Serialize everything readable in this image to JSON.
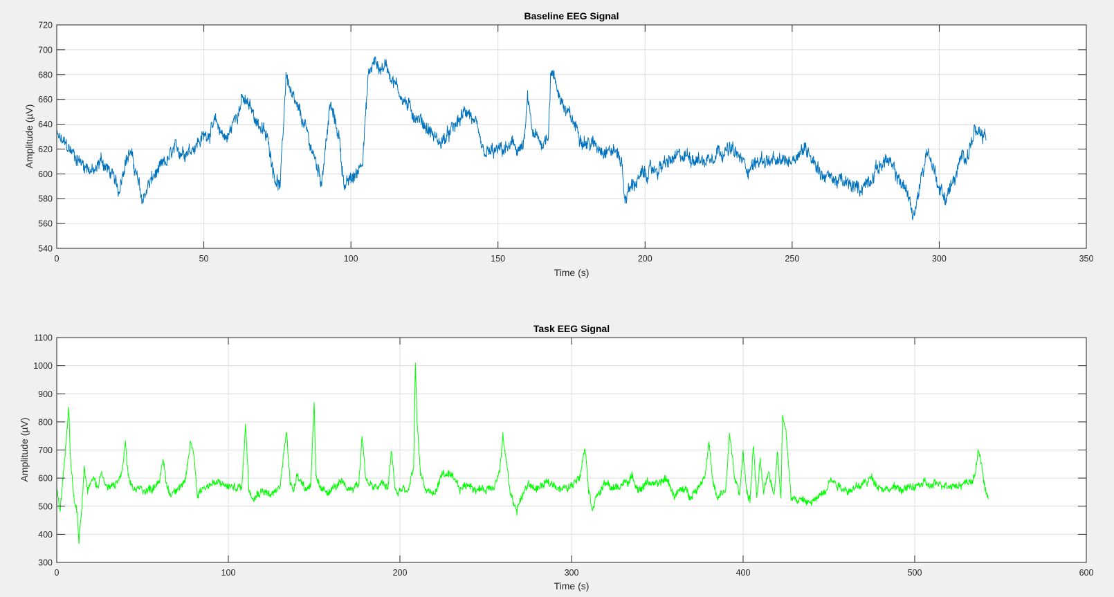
{
  "colors": {
    "figure_background": "#f0f0f0",
    "axes_background": "#ffffff",
    "grid": "#dcdcdc",
    "axis": "#262626"
  },
  "chart_data": [
    {
      "type": "line",
      "title": "Baseline EEG Signal",
      "xlabel": "Time (s)",
      "ylabel": "Amplitude (µV)",
      "xlim": [
        0,
        350
      ],
      "ylim": [
        540,
        720
      ],
      "xticks": [
        "0",
        "50",
        "100",
        "150",
        "200",
        "250",
        "300",
        "350"
      ],
      "yticks": [
        "540",
        "560",
        "580",
        "600",
        "620",
        "640",
        "660",
        "680",
        "700",
        "720"
      ],
      "grid": true,
      "noise_amplitude": 8,
      "series": [
        {
          "color": "#0072bd",
          "x": [
            0,
            2,
            5,
            8,
            11,
            13,
            15,
            17,
            19,
            21,
            23,
            25,
            27,
            29,
            31,
            33,
            36,
            40,
            45,
            50,
            54,
            58,
            61,
            63,
            66,
            70,
            72,
            74,
            76,
            78,
            80,
            84,
            88,
            90,
            93,
            96,
            97,
            98,
            100,
            102,
            104,
            106,
            108,
            110,
            112,
            116,
            120,
            125,
            130,
            133,
            136,
            139,
            140,
            141,
            142,
            145,
            150,
            155,
            158,
            159,
            160,
            162,
            165,
            167,
            168,
            170,
            173,
            176,
            180,
            185,
            190,
            192,
            193,
            194,
            196,
            200,
            205,
            210,
            215,
            220,
            225,
            230,
            235,
            240,
            245,
            250,
            253,
            256,
            260,
            265,
            270,
            273,
            276,
            279,
            282,
            285,
            288,
            290,
            291,
            292,
            294,
            296,
            298,
            300,
            302,
            304,
            306,
            308,
            310,
            312,
            314,
            316
          ],
          "y": [
            630,
            625,
            618,
            610,
            605,
            600,
            612,
            605,
            598,
            585,
            610,
            618,
            600,
            578,
            590,
            598,
            605,
            618,
            620,
            630,
            640,
            628,
            648,
            660,
            652,
            635,
            625,
            600,
            590,
            682,
            660,
            640,
            610,
            595,
            655,
            630,
            605,
            590,
            595,
            600,
            615,
            680,
            690,
            685,
            688,
            668,
            652,
            640,
            625,
            630,
            640,
            650,
            652,
            645,
            640,
            615,
            618,
            622,
            620,
            625,
            660,
            630,
            625,
            630,
            685,
            670,
            650,
            640,
            625,
            622,
            618,
            612,
            580,
            585,
            592,
            600,
            605,
            612,
            615,
            610,
            620,
            618,
            605,
            612,
            608,
            612,
            620,
            618,
            600,
            595,
            590,
            588,
            595,
            605,
            612,
            600,
            590,
            580,
            565,
            570,
            600,
            620,
            605,
            590,
            580,
            590,
            600,
            615,
            618,
            635,
            628,
            630
          ]
        }
      ]
    },
    {
      "type": "line",
      "title": "Task EEG Signal",
      "xlabel": "Time (s)",
      "ylabel": "Amplitude (µV)",
      "xlim": [
        0,
        600
      ],
      "ylim": [
        300,
        1100
      ],
      "xticks": [
        "0",
        "100",
        "200",
        "300",
        "400",
        "500",
        "600"
      ],
      "yticks": [
        "300",
        "400",
        "500",
        "600",
        "700",
        "800",
        "900",
        "1000",
        "1100"
      ],
      "grid": true,
      "noise_amplitude": 20,
      "series": [
        {
          "color": "#00ff00",
          "x": [
            0,
            2,
            4,
            6,
            7,
            8,
            10,
            12,
            13,
            14,
            16,
            18,
            20,
            22,
            24,
            26,
            28,
            30,
            33,
            36,
            38,
            40,
            42,
            45,
            50,
            55,
            60,
            62,
            64,
            66,
            70,
            75,
            78,
            80,
            82,
            84,
            86,
            90,
            95,
            100,
            105,
            108,
            110,
            112,
            115,
            120,
            125,
            130,
            134,
            136,
            138,
            140,
            145,
            148,
            150,
            151,
            153,
            156,
            160,
            165,
            170,
            176,
            178,
            180,
            185,
            190,
            193,
            195,
            197,
            199,
            200,
            205,
            208,
            209,
            210,
            212,
            215,
            220,
            225,
            230,
            235,
            240,
            245,
            250,
            255,
            258,
            260,
            262,
            264,
            266,
            268,
            270,
            275,
            280,
            285,
            290,
            295,
            300,
            305,
            308,
            310,
            312,
            315,
            320,
            325,
            330,
            335,
            340,
            345,
            350,
            355,
            360,
            365,
            370,
            375,
            378,
            380,
            382,
            385,
            390,
            392,
            395,
            398,
            400,
            402,
            404,
            406,
            408,
            410,
            412,
            415,
            418,
            420,
            422,
            423,
            425,
            428,
            432,
            435,
            440,
            445,
            448,
            450,
            455,
            460,
            465,
            470,
            475,
            480,
            485,
            490,
            495,
            500,
            505,
            510,
            515,
            520,
            525,
            530,
            535,
            537,
            538,
            540,
            542,
            543
          ],
          "y": [
            560,
            480,
            620,
            780,
            860,
            680,
            540,
            480,
            380,
            460,
            640,
            560,
            580,
            600,
            560,
            640,
            580,
            560,
            570,
            590,
            620,
            720,
            580,
            560,
            560,
            560,
            600,
            660,
            580,
            540,
            570,
            580,
            730,
            680,
            540,
            560,
            570,
            580,
            580,
            570,
            565,
            570,
            800,
            560,
            540,
            560,
            540,
            560,
            780,
            580,
            560,
            620,
            560,
            580,
            880,
            600,
            560,
            550,
            560,
            580,
            560,
            580,
            760,
            600,
            560,
            580,
            560,
            700,
            570,
            540,
            560,
            550,
            640,
            1000,
            800,
            620,
            560,
            540,
            620,
            600,
            560,
            580,
            560,
            560,
            580,
            620,
            740,
            660,
            560,
            520,
            480,
            520,
            580,
            560,
            580,
            580,
            560,
            570,
            620,
            720,
            560,
            500,
            540,
            580,
            560,
            580,
            600,
            560,
            590,
            570,
            600,
            540,
            560,
            540,
            580,
            620,
            740,
            600,
            520,
            560,
            760,
            600,
            540,
            700,
            560,
            520,
            720,
            520,
            660,
            540,
            620,
            540,
            700,
            540,
            820,
            760,
            540,
            520,
            520,
            510,
            540,
            560,
            600,
            580,
            560,
            560,
            580,
            600,
            570,
            560,
            565,
            560,
            570,
            580,
            570,
            580,
            580,
            575,
            585,
            600,
            700,
            680,
            600,
            540,
            515
          ]
        }
      ]
    }
  ]
}
